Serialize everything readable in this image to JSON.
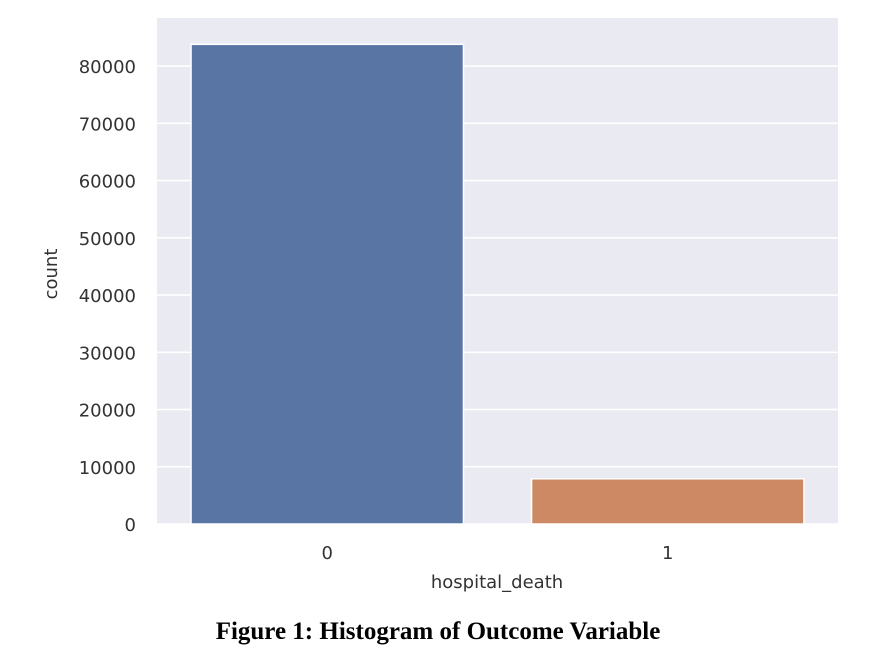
{
  "figure": {
    "caption": "Figure 1: Histogram of Outcome Variable"
  },
  "chart_data": {
    "type": "bar",
    "categories": [
      "0",
      "1"
    ],
    "values": [
      83800,
      7900
    ],
    "title": "",
    "xlabel": "hospital_death",
    "ylabel": "count",
    "ylim": [
      0,
      88400
    ],
    "yticks": [
      0,
      10000,
      20000,
      30000,
      40000,
      50000,
      60000,
      70000,
      80000
    ],
    "ytick_labels": [
      "0",
      "10000",
      "20000",
      "30000",
      "40000",
      "50000",
      "60000",
      "70000",
      "80000"
    ],
    "grid": true,
    "colors": {
      "background": "#eaeaf2",
      "grid": "#ffffff",
      "bars": [
        "#5975a4",
        "#cc8963"
      ]
    }
  }
}
